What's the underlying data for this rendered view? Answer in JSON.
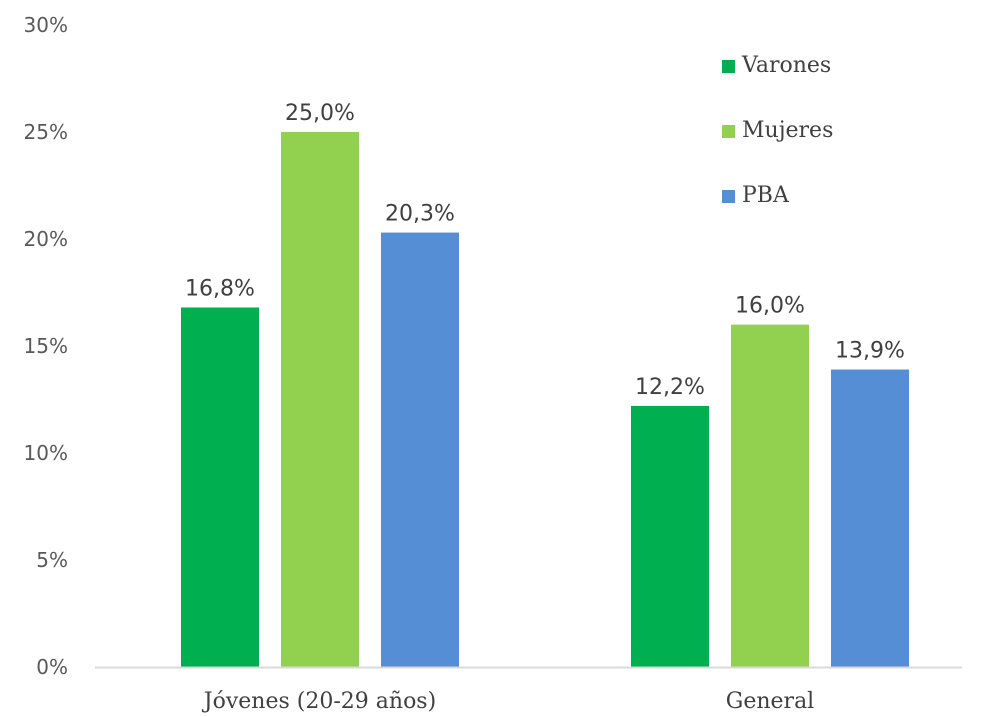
{
  "chart_data": {
    "type": "bar",
    "categories": [
      "Jóvenes (20-29 años)",
      "General"
    ],
    "series": [
      {
        "name": "Varones",
        "values": [
          16.8,
          12.2
        ],
        "labels": [
          "16,8%",
          "12,2%"
        ],
        "color": "#00b050"
      },
      {
        "name": "Mujeres",
        "values": [
          25.0,
          16.0
        ],
        "labels": [
          "25,0%",
          "16,0%"
        ],
        "color": "#92d050"
      },
      {
        "name": "PBA",
        "values": [
          20.3,
          13.9
        ],
        "labels": [
          "20,3%",
          "13,9%"
        ],
        "color": "#558ed5"
      }
    ],
    "ylim": [
      0,
      30
    ],
    "yticks": [
      0,
      5,
      10,
      15,
      20,
      25,
      30
    ],
    "ytick_labels": [
      "0%",
      "5%",
      "10%",
      "15%",
      "20%",
      "25%",
      "30%"
    ],
    "grid": false,
    "legend_position": "top-right",
    "axis_color": "#d9d9d9"
  }
}
